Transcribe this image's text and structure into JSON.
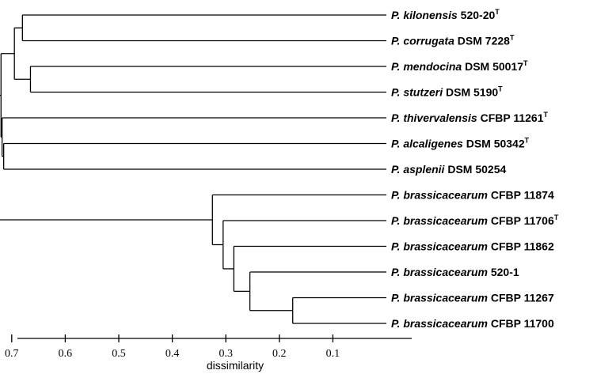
{
  "chart_data": {
    "type": "dendrogram",
    "xlabel": "dissimilarity",
    "xlim": [
      0.735,
      0.0
    ],
    "ticks": [
      0.7,
      0.6,
      0.5,
      0.4,
      0.3,
      0.2,
      0.1
    ],
    "leaves": [
      {
        "genus": "P.",
        "species": "kilonensis",
        "strain": "520-20",
        "type_strain": "T"
      },
      {
        "genus": "P.",
        "species": "corrugata",
        "strain": "DSM 7228",
        "type_strain": "T"
      },
      {
        "genus": "P.",
        "species": "mendocina",
        "strain": "DSM 50017",
        "type_strain": "T"
      },
      {
        "genus": "P.",
        "species": "stutzeri",
        "strain": "DSM 5190",
        "type_strain": "T"
      },
      {
        "genus": "P.",
        "species": "thivervalensis",
        "strain": "CFBP 11261",
        "type_strain": "T"
      },
      {
        "genus": "P.",
        "species": "alcaligenes",
        "strain": "DSM 50342",
        "type_strain": "T"
      },
      {
        "genus": "P.",
        "species": "asplenii",
        "strain": "DSM 50254",
        "type_strain": ""
      },
      {
        "genus": "P.",
        "species": "brassicacearum",
        "strain": "CFBP 11874",
        "type_strain": ""
      },
      {
        "genus": "P.",
        "species": "brassicacearum",
        "strain": "CFBP 11706",
        "type_strain": "T"
      },
      {
        "genus": "P.",
        "species": "brassicacearum",
        "strain": "CFBP 11862",
        "type_strain": ""
      },
      {
        "genus": "P.",
        "species": "brassicacearum",
        "strain": "520-1",
        "type_strain": ""
      },
      {
        "genus": "P.",
        "species": "brassicacearum",
        "strain": "CFBP 11267",
        "type_strain": ""
      },
      {
        "genus": "P.",
        "species": "brassicacearum",
        "strain": "CFBP 11700",
        "type_strain": ""
      }
    ],
    "merges": [
      {
        "left": "L0",
        "right": "L1",
        "height": 0.68
      },
      {
        "left": "L2",
        "right": "L3",
        "height": 0.665
      },
      {
        "left": "C0",
        "right": "C1",
        "height": 0.695
      },
      {
        "left": "L5",
        "right": "L6",
        "height": 0.715
      },
      {
        "left": "L4",
        "right": "C3",
        "height": 0.718
      },
      {
        "left": "C2",
        "right": "C4",
        "height": 0.72
      },
      {
        "left": "L11",
        "right": "L12",
        "height": 0.175
      },
      {
        "left": "L10",
        "right": "C6",
        "height": 0.255
      },
      {
        "left": "L9",
        "right": "C7",
        "height": 0.285
      },
      {
        "left": "L8",
        "right": "C8",
        "height": 0.305
      },
      {
        "left": "L7",
        "right": "C9",
        "height": 0.325
      },
      {
        "left": "C5",
        "right": "C10",
        "height": 0.735
      }
    ]
  }
}
